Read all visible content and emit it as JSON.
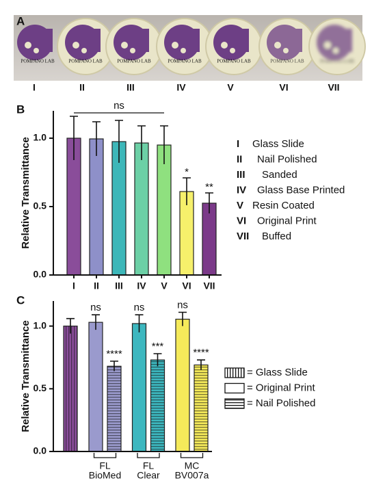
{
  "panel_a": {
    "panel_label": "A",
    "disc_text": "POMPANO LAB",
    "sample_labels": [
      "I",
      "II",
      "III",
      "IV",
      "V",
      "VI",
      "VII"
    ]
  },
  "chart_data": [
    {
      "type": "bar",
      "panel_label": "B",
      "y_label": "Relative Transmittance",
      "categories": [
        "I",
        "II",
        "III",
        "IV",
        "V",
        "VI",
        "VII"
      ],
      "values": [
        1.0,
        0.995,
        0.975,
        0.965,
        0.95,
        0.61,
        0.525
      ],
      "errors": [
        0.16,
        0.125,
        0.155,
        0.125,
        0.14,
        0.1,
        0.075
      ],
      "colors": [
        "#8a4d9a",
        "#8e90c9",
        "#3db7b9",
        "#6cd0a6",
        "#8fe07f",
        "#f6f06b",
        "#7b3a89"
      ],
      "annotations": [
        null,
        null,
        null,
        null,
        null,
        "*",
        "**"
      ],
      "bracket_label": "ns",
      "ylim": [
        0,
        1.2
      ],
      "yticks": [
        {
          "value": 0,
          "label": "0.0"
        },
        {
          "value": 0.5,
          "label": "0.5"
        },
        {
          "value": 1,
          "label": "1.0"
        }
      ],
      "legend": [
        {
          "key": "I",
          "label": "Glass Slide"
        },
        {
          "key": "II",
          "label": "Nail Polished"
        },
        {
          "key": "III",
          "label": "Sanded"
        },
        {
          "key": "IV",
          "label": "Glass Base Printed"
        },
        {
          "key": "V",
          "label": "Resin Coated"
        },
        {
          "key": "VI",
          "label": "Original Print"
        },
        {
          "key": "VII",
          "label": "Buffed"
        }
      ]
    },
    {
      "type": "grouped-bar",
      "panel_label": "C",
      "y_label": "Relative Transmittance",
      "categories": [
        null,
        [
          "FL",
          "BioMed"
        ],
        [
          "FL",
          "Clear"
        ],
        [
          "MC",
          "BV007a"
        ]
      ],
      "series": [
        {
          "name": "= Glass Slide",
          "pattern": "vertical",
          "values": [
            1.0,
            null,
            null,
            null
          ],
          "errors": [
            0.06,
            null,
            null,
            null
          ],
          "colors": [
            "#8a4d9a",
            null,
            null,
            null
          ],
          "annotations": [
            null,
            null,
            null,
            null
          ]
        },
        {
          "name": "= Original Print",
          "pattern": "none",
          "values": [
            null,
            1.03,
            1.02,
            1.055
          ],
          "errors": [
            null,
            0.06,
            0.07,
            0.055
          ],
          "colors": [
            null,
            "#9a9acd",
            "#3db7bf",
            "#f5ea5a"
          ],
          "annotations": [
            null,
            "ns",
            "ns",
            "ns"
          ]
        },
        {
          "name": "= Nail Polished",
          "pattern": "horizontal",
          "values": [
            null,
            0.68,
            0.73,
            0.69
          ],
          "errors": [
            null,
            0.04,
            0.05,
            0.04
          ],
          "colors": [
            null,
            "#9a9acd",
            "#3db7bf",
            "#f5ea5a"
          ],
          "annotations": [
            null,
            "****",
            "***",
            "****"
          ]
        }
      ],
      "ylim": [
        0,
        1.2
      ],
      "yticks": [
        {
          "value": 0,
          "label": "0.0"
        },
        {
          "value": 0.5,
          "label": "0.5"
        },
        {
          "value": 1,
          "label": "1.0"
        }
      ]
    }
  ]
}
